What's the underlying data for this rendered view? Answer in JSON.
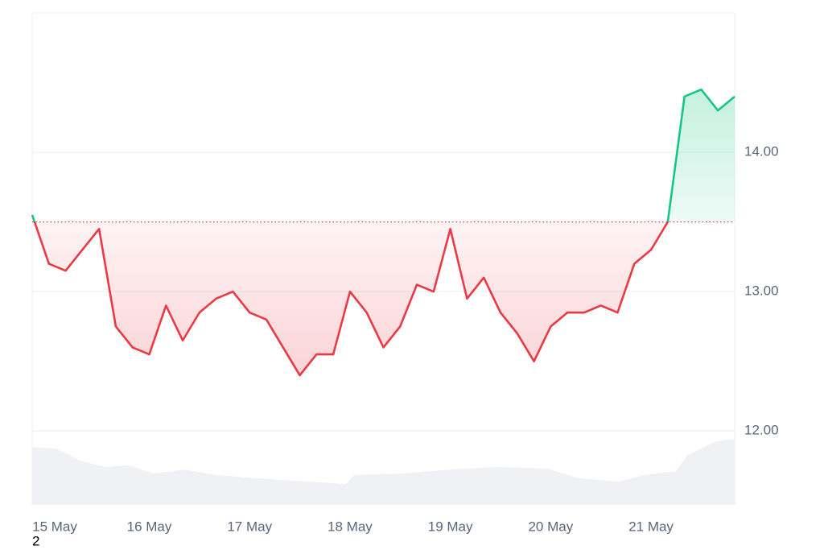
{
  "chart_data": {
    "type": "line",
    "categories": [
      "15 May",
      null,
      null,
      null,
      null,
      null,
      null,
      "16 May",
      null,
      null,
      null,
      null,
      null,
      "17 May",
      null,
      null,
      null,
      null,
      null,
      "18 May",
      null,
      null,
      null,
      null,
      null,
      "19 May",
      null,
      null,
      null,
      null,
      null,
      "20 May",
      null,
      null,
      null,
      null,
      null,
      "21 May",
      null,
      null,
      null,
      null,
      null
    ],
    "values": [
      13.55,
      13.2,
      13.15,
      13.3,
      13.45,
      12.75,
      12.6,
      12.55,
      12.9,
      12.65,
      12.85,
      12.95,
      13.0,
      12.85,
      12.8,
      12.6,
      12.4,
      12.55,
      12.55,
      13.0,
      12.85,
      12.6,
      12.75,
      13.05,
      13.0,
      13.45,
      12.95,
      13.1,
      12.85,
      12.7,
      12.5,
      12.75,
      12.85,
      12.85,
      12.9,
      12.85,
      13.2,
      13.3,
      13.5,
      14.4,
      14.45,
      14.3,
      14.4
    ],
    "baseline": 13.5,
    "up_color": "#16c784",
    "down_color": "#ea3943",
    "ylim": [
      11.47,
      15.0
    ],
    "yticks": [
      {
        "value": 12,
        "label": "12.00"
      },
      {
        "value": 13,
        "label": "13.00"
      },
      {
        "value": 14,
        "label": "14.00"
      }
    ],
    "grid": true,
    "footnote": "2"
  }
}
